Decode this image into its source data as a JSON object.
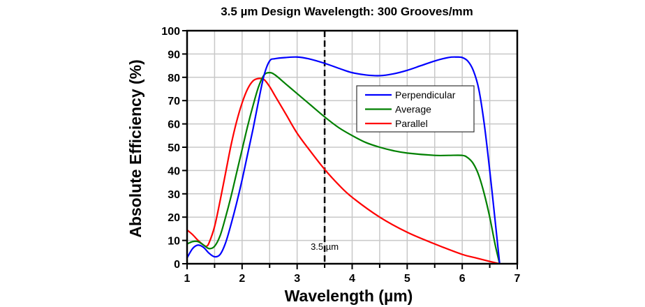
{
  "chart_data": {
    "type": "line",
    "title": "3.5 µm Design Wavelength: 300 Grooves/mm",
    "xlabel": "Wavelength (µm)",
    "ylabel": "Absolute Efficiency (%)",
    "xlim": [
      1,
      7
    ],
    "ylim": [
      0,
      100
    ],
    "xticks": [
      1,
      2,
      3,
      4,
      5,
      6,
      7
    ],
    "xtick_labels": [
      "1",
      "2",
      "3",
      "4",
      "5",
      "6",
      "7"
    ],
    "xminor_step": 0.5,
    "yticks": [
      0,
      10,
      20,
      30,
      40,
      50,
      60,
      70,
      80,
      90,
      100
    ],
    "ytick_labels": [
      "0",
      "10",
      "20",
      "30",
      "40",
      "50",
      "60",
      "70",
      "80",
      "90",
      "100"
    ],
    "grid": true,
    "legend_position": "upper-right-inside",
    "annotations": [
      {
        "type": "vline",
        "x": 3.5,
        "style": "dashed",
        "color": "#000000",
        "label": "3.5 µm",
        "label_y": 6
      }
    ],
    "series": [
      {
        "name": "Perpendicular",
        "color": "#0000ff",
        "x": [
          1.0,
          1.1,
          1.2,
          1.3,
          1.4,
          1.5,
          1.6,
          1.7,
          1.8,
          1.9,
          2.0,
          2.1,
          2.2,
          2.3,
          2.4,
          2.5,
          2.6,
          2.8,
          3.0,
          3.2,
          3.5,
          3.8,
          4.0,
          4.25,
          4.5,
          4.75,
          5.0,
          5.25,
          5.5,
          5.75,
          5.9,
          6.0,
          6.1,
          6.2,
          6.3,
          6.4,
          6.5,
          6.6,
          6.68
        ],
        "y": [
          2.5,
          6.5,
          8,
          7,
          4.5,
          3,
          4,
          9,
          17,
          26,
          36,
          47,
          58,
          70,
          81,
          87,
          88,
          88.5,
          88.7,
          88,
          86,
          83.5,
          82,
          81,
          80.7,
          81.5,
          83,
          85,
          87,
          88.5,
          88.7,
          88.5,
          87,
          83,
          75,
          60,
          40,
          18,
          0
        ]
      },
      {
        "name": "Average",
        "color": "#008000",
        "x": [
          1.0,
          1.1,
          1.2,
          1.3,
          1.4,
          1.5,
          1.6,
          1.7,
          1.8,
          1.9,
          2.0,
          2.1,
          2.2,
          2.3,
          2.4,
          2.5,
          2.6,
          2.8,
          3.0,
          3.25,
          3.5,
          3.75,
          4.0,
          4.25,
          4.5,
          4.75,
          5.0,
          5.5,
          5.75,
          6.0,
          6.1,
          6.2,
          6.3,
          6.4,
          6.5,
          6.6,
          6.68
        ],
        "y": [
          8.5,
          9.5,
          9.5,
          8,
          6.5,
          7.5,
          12,
          20,
          29,
          39,
          49,
          59,
          68,
          76,
          81,
          82,
          81,
          77,
          73,
          68,
          63,
          58.5,
          55,
          52,
          50,
          48.5,
          47.5,
          46.5,
          46.5,
          46.5,
          45.5,
          43,
          38,
          30,
          20,
          8,
          0
        ]
      },
      {
        "name": "Parallel",
        "color": "#ff0000",
        "x": [
          1.0,
          1.1,
          1.2,
          1.3,
          1.35,
          1.4,
          1.5,
          1.6,
          1.7,
          1.8,
          1.9,
          2.0,
          2.1,
          2.2,
          2.3,
          2.4,
          2.5,
          2.6,
          2.8,
          3.0,
          3.25,
          3.5,
          3.75,
          4.0,
          4.5,
          5.0,
          5.5,
          6.0,
          6.25,
          6.5,
          6.68
        ],
        "y": [
          14.5,
          12.5,
          10,
          8,
          7.5,
          9,
          16,
          27,
          39,
          51,
          61,
          69,
          75,
          78.5,
          79.5,
          79,
          76,
          72,
          64,
          56,
          48,
          40.5,
          34,
          28.5,
          20,
          13.5,
          8.5,
          4,
          2.5,
          1,
          0
        ]
      }
    ]
  }
}
